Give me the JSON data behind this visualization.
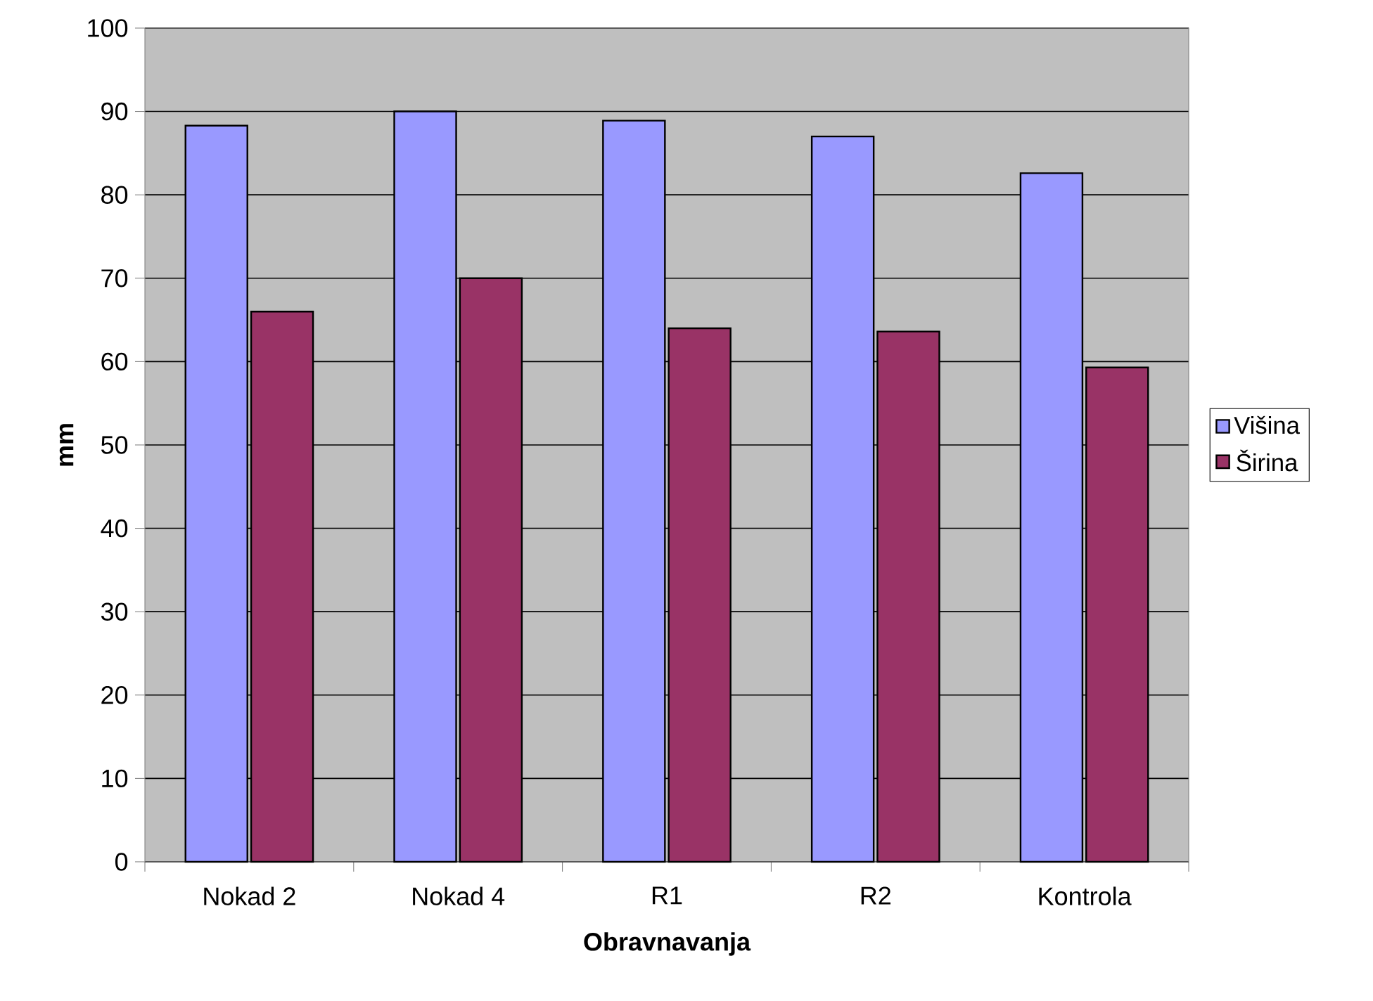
{
  "chart_data": {
    "type": "bar",
    "xlabel": "Obravnavanja",
    "ylabel": "mm",
    "categories": [
      "Nokad 2",
      "Nokad 4",
      "R1",
      "R2",
      "Kontrola"
    ],
    "series": [
      {
        "name": "Višina",
        "color": "#9999ff",
        "values": [
          88.3,
          90,
          88.9,
          87,
          82.6
        ]
      },
      {
        "name": "Širina",
        "color": "#993366",
        "values": [
          66,
          70,
          64,
          63.6,
          59.3
        ]
      }
    ],
    "ylim": [
      0,
      100
    ],
    "yticks": [
      0,
      10,
      20,
      30,
      40,
      50,
      60,
      70,
      80,
      90,
      100
    ],
    "grid": "y",
    "legend": "right"
  }
}
